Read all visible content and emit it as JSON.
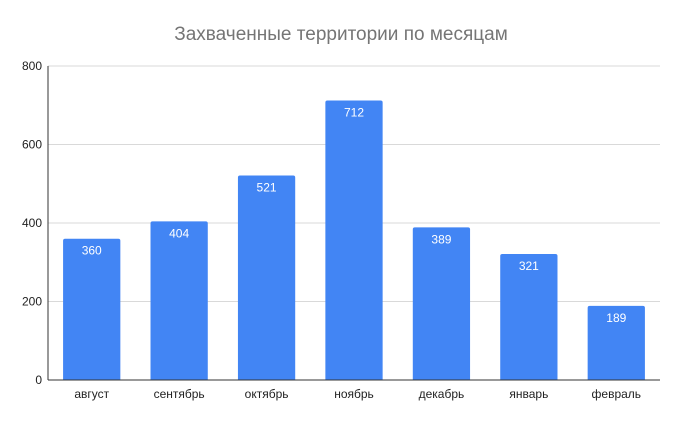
{
  "colors": {
    "bar": "#4285f4",
    "grid": "#d9d9d9",
    "axis": "#333333",
    "title": "#757575",
    "data_label": "#ffffff"
  },
  "chart_data": {
    "type": "bar",
    "title": "Захваченные территории по месяцам",
    "xlabel": "",
    "ylabel": "",
    "categories": [
      "август",
      "сентябрь",
      "октябрь",
      "ноябрь",
      "декабрь",
      "январь",
      "февраль"
    ],
    "values": [
      360,
      404,
      521,
      712,
      389,
      321,
      189
    ],
    "data_labels": [
      "360",
      "404",
      "521",
      "712",
      "389",
      "321",
      "189"
    ],
    "ylim": [
      0,
      800
    ],
    "yticks": [
      0,
      200,
      400,
      600,
      800
    ],
    "ytick_labels": [
      "0",
      "200",
      "400",
      "600",
      "800"
    ],
    "grid": true,
    "legend": "none"
  }
}
